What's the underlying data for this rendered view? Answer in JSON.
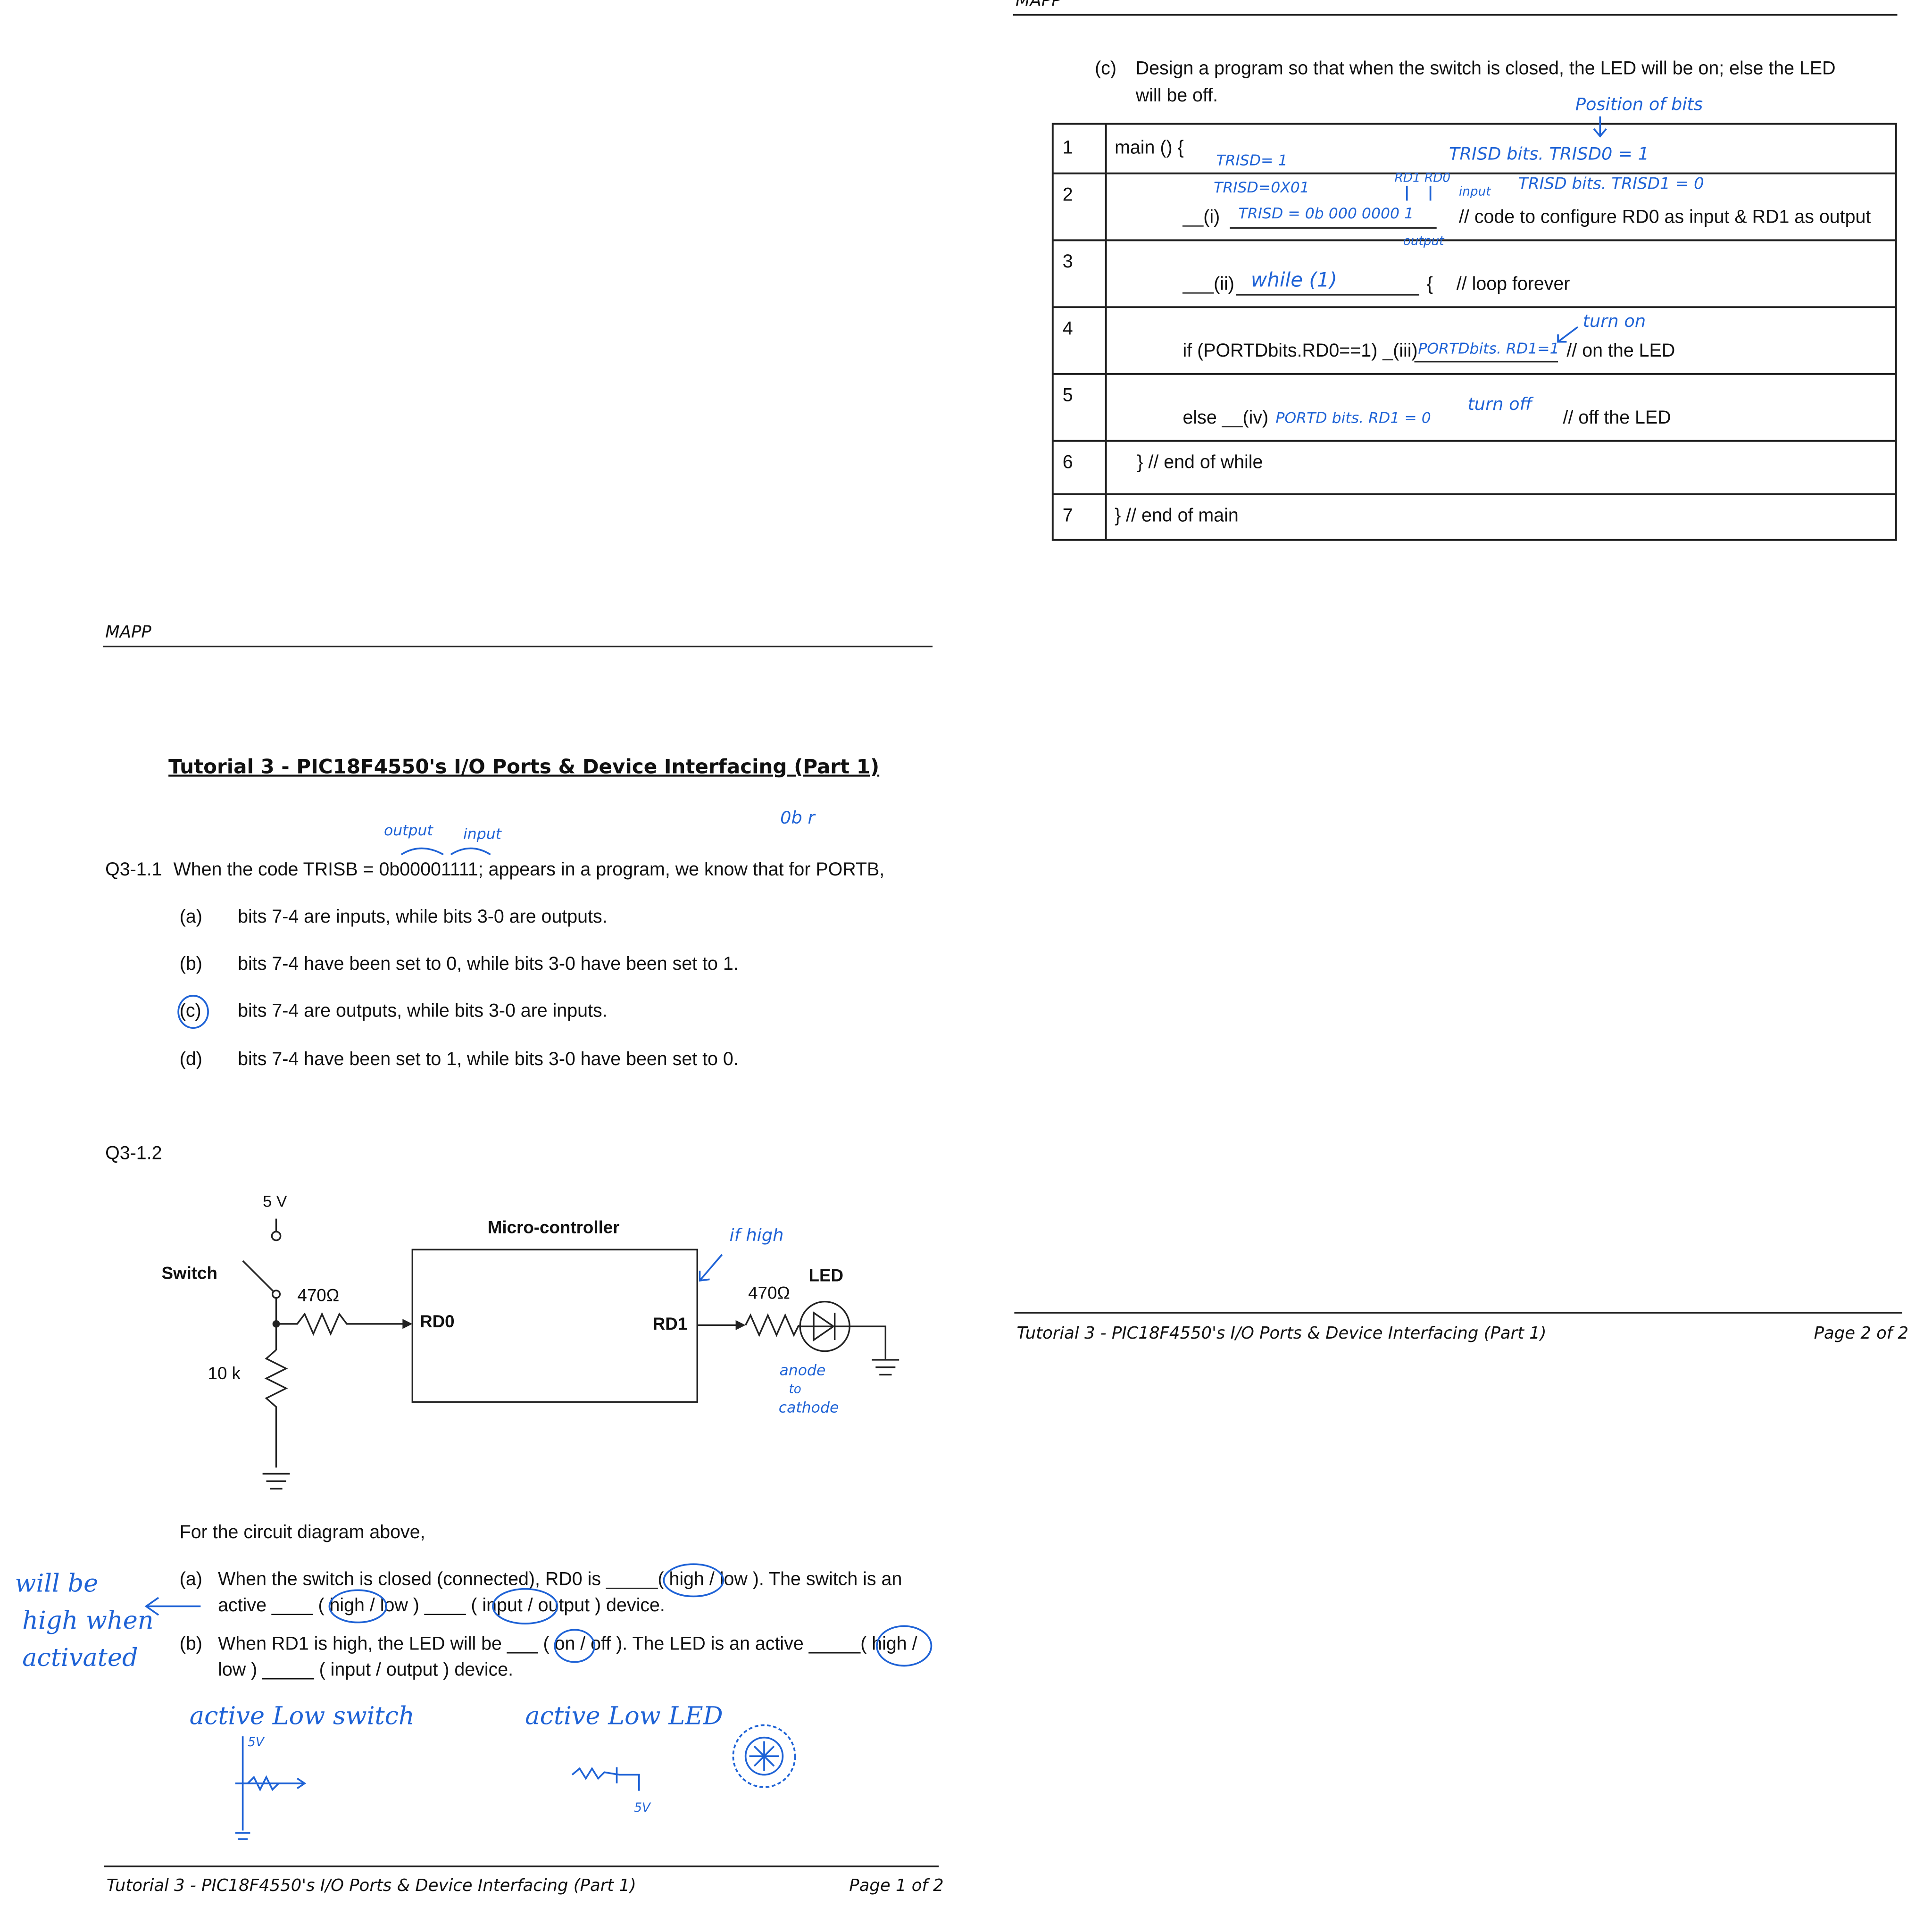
{
  "page2": {
    "header": "MAPP",
    "question": {
      "label": "(c)",
      "lines": [
        "Design a program so that when the switch is closed, the LED will be on; else the LED",
        "will be off."
      ]
    },
    "table": {
      "rows": [
        [
          "1",
          "main () {"
        ],
        [
          "2",
          "__(i)",
          "// code to configure RD0 as input & RD1 as output"
        ],
        [
          "3",
          "___(ii)",
          "{",
          "// loop forever"
        ],
        [
          "4",
          "if (PORTDbits.RD0==1) _(iii)",
          "// on  the LED"
        ],
        [
          "5",
          "else __(iv)",
          "// off the LED"
        ],
        [
          "6",
          "} // end of while"
        ],
        [
          "7",
          "} // end of main"
        ]
      ]
    },
    "annotations": {
      "position_note": "Position of bits",
      "trisd_1": "TRISD= 1",
      "trisd0_bits": "TRISD bits. TRISD0 = 1",
      "trisd_hex": "TRISD=0X01",
      "bit_names": "RD1 RD0",
      "input_note": "input",
      "trisd1_bits": "TRISD bits. TRISD1 = 0",
      "answer_i": "TRISD = 0b 000 0000 1",
      "output_note": "output",
      "answer_ii": "while (1)",
      "answer_iii": "PORTDbits. RD1=1",
      "turn_on": "turn on",
      "answer_iv": "PORTD bits. RD1 = 0",
      "turn_off": "turn off"
    },
    "footer": {
      "title": "Tutorial 3 - PIC18F4550's I/O Ports & Device Interfacing (Part 1)",
      "page": "Page 2 of 2"
    }
  },
  "page1": {
    "header": "MAPP",
    "title": "Tutorial 3 - PIC18F4550's I/O Ports & Device Interfacing (Part 1)",
    "q1": {
      "label": "Q3-1.1",
      "text": "When the code TRISB = 0b00001111; appears in a program, we know that for PORTB,",
      "options": [
        [
          "(a)",
          "bits 7-4 are inputs, while bits 3-0 are outputs."
        ],
        [
          "(b)",
          "bits 7-4 have been set to 0, while bits 3-0 have been set to 1."
        ],
        [
          "(c)",
          "bits 7-4 are outputs, while bits 3-0 are inputs."
        ],
        [
          "(d)",
          "bits 7-4 have been set to 1, while bits 3-0 have been set to 0."
        ]
      ]
    },
    "q2": {
      "label": "Q3-1.2",
      "circuit": {
        "supply": "5 V",
        "controller": "Micro-controller",
        "switch": "Switch",
        "r1": "470Ω",
        "pin_in": "RD0",
        "pin_out": "RD1",
        "r2": "470Ω",
        "led": "LED",
        "r3": "10 k"
      },
      "intro": "For the circuit diagram above,",
      "parts": [
        {
          "label": "(a)",
          "lines": [
            "When the switch is closed (connected), RD0 is _____( high / low ). The switch is an",
            "active ____ ( high / low ) ____ ( input / output ) device."
          ]
        },
        {
          "label": "(b)",
          "lines": [
            "When RD1 is high, the LED will be ___ ( on / off ).  The LED is an active _____( high /",
            "low ) _____ ( input / output ) device."
          ]
        }
      ]
    },
    "annotations": {
      "output_note": "output",
      "input_note": "input",
      "margin_note": "0b r",
      "if_high": "if high",
      "anode": [
        "anode",
        "to",
        "cathode"
      ],
      "will_be_high": [
        "will be",
        "high when",
        "activated"
      ],
      "active_low_switch": "active Low switch",
      "active_low_led": "active Low LED",
      "five_v_a": "5V",
      "five_v_b": "5V"
    },
    "footer": {
      "title": "Tutorial 3 - PIC18F4550's I/O Ports & Device Interfacing (Part 1)",
      "page": "Page 1 of 2"
    }
  }
}
